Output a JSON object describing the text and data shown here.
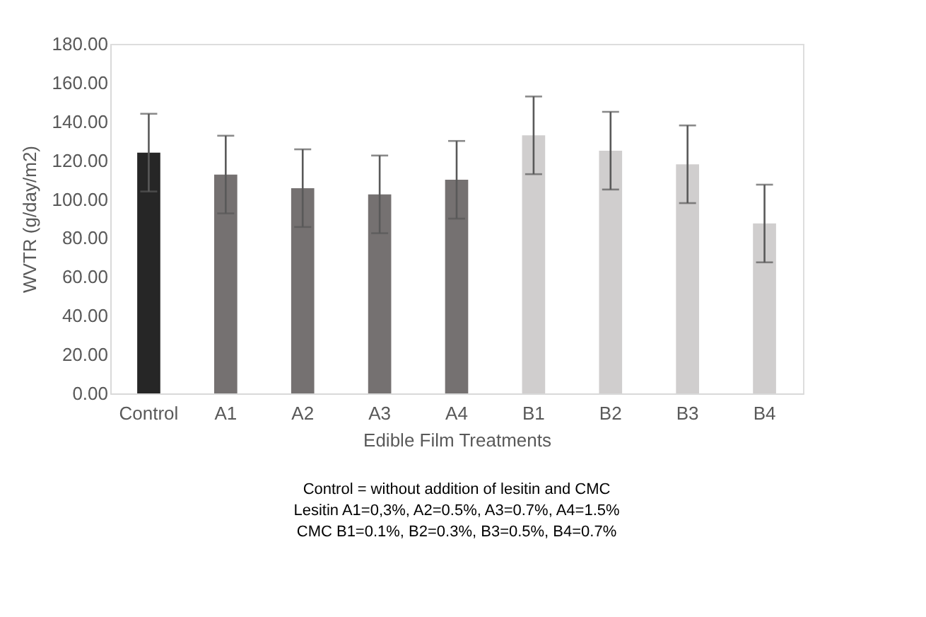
{
  "chart_data": {
    "type": "bar",
    "xlabel": "Edible Film Treatments",
    "ylabel": "WVTR (g/day/m2)",
    "categories": [
      "Control",
      "A1",
      "A2",
      "A3",
      "A4",
      "B1",
      "B2",
      "B3",
      "B4"
    ],
    "values": [
      124,
      112.7,
      105.7,
      102.5,
      110,
      132.9,
      125,
      118,
      87.5
    ],
    "errors": [
      20,
      20,
      20,
      20,
      20,
      20,
      20,
      20,
      20
    ],
    "colors": [
      "#262626",
      "#757171",
      "#757171",
      "#757171",
      "#757171",
      "#d0cece",
      "#d0cece",
      "#d0cece",
      "#d0cece"
    ],
    "ylim": [
      0,
      180
    ],
    "yticks": [
      {
        "value": 0,
        "label": "0.00"
      },
      {
        "value": 20,
        "label": "20.00"
      },
      {
        "value": 40,
        "label": "40.00"
      },
      {
        "value": 60,
        "label": "60.00"
      },
      {
        "value": 80,
        "label": "80.00"
      },
      {
        "value": 100,
        "label": "100.00"
      },
      {
        "value": 120,
        "label": "120.00"
      },
      {
        "value": 140,
        "label": "140.00"
      },
      {
        "value": 160,
        "label": "160.00"
      },
      {
        "value": 180,
        "label": "180.00"
      }
    ],
    "grid": false,
    "annotations": [
      "Control = without  addition of lesitin and CMC",
      "Lesitin A1=0,3%, A2=0.5%, A3=0.7%, A4=1.5%",
      "CMC B1=0.1%, B2=0.3%, B3=0.5%, B4=0.7%"
    ]
  }
}
